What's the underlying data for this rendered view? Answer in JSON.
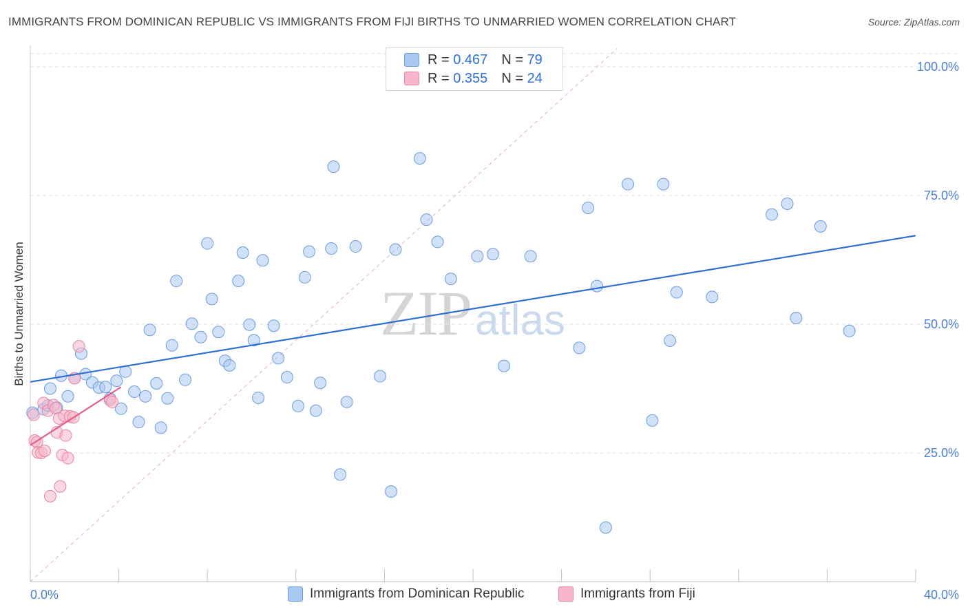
{
  "header": {
    "title": "IMMIGRANTS FROM DOMINICAN REPUBLIC VS IMMIGRANTS FROM FIJI BIRTHS TO UNMARRIED WOMEN CORRELATION CHART",
    "source": "Source: ZipAtlas.com"
  },
  "watermark": {
    "zip": "ZIP",
    "atlas": "atlas"
  },
  "legend": {
    "rows": [
      {
        "r_label": "R = ",
        "r_value": "0.467",
        "n_label": "N = ",
        "n_value": "79",
        "color": "#a9c8f2"
      },
      {
        "r_label": "R = ",
        "r_value": "0.355",
        "n_label": "N = ",
        "n_value": "24",
        "color": "#f7b6c9"
      }
    ]
  },
  "bottom_legend": [
    {
      "label": "Immigrants from Dominican Republic",
      "color": "#a9c8f2"
    },
    {
      "label": "Immigrants from Fiji",
      "color": "#f7b6c9"
    }
  ],
  "chart_data": {
    "type": "scatter",
    "title": "IMMIGRANTS FROM DOMINICAN REPUBLIC VS IMMIGRANTS FROM FIJI BIRTHS TO UNMARRIED WOMEN CORRELATION CHART",
    "ylabel": "Births to Unmarried Women",
    "xlabel": "",
    "xlim": [
      0,
      40
    ],
    "ylim": [
      0,
      100
    ],
    "x_tick_labels": [
      "0.0%",
      "40.0%"
    ],
    "y_tick_values": [
      25,
      50,
      75,
      100
    ],
    "y_tick_labels": [
      "25.0%",
      "50.0%",
      "75.0%",
      "100.0%"
    ],
    "grid": true,
    "legend_position": "top-center",
    "series": [
      {
        "name": "Immigrants from Dominican Republic",
        "color": "#a9c8f2",
        "stroke": "#6b9be0",
        "trend": {
          "x": [
            0,
            40
          ],
          "y": [
            38.8,
            67.2
          ],
          "color": "#2f6fd0"
        },
        "points": [
          [
            0.1,
            32.8
          ],
          [
            0.6,
            33.5
          ],
          [
            0.8,
            34.2
          ],
          [
            0.9,
            37.5
          ],
          [
            1.4,
            40.0
          ],
          [
            1.7,
            36.0
          ],
          [
            2.3,
            44.3
          ],
          [
            2.5,
            40.3
          ],
          [
            2.8,
            38.7
          ],
          [
            3.1,
            37.7
          ],
          [
            3.4,
            37.8
          ],
          [
            3.6,
            35.6
          ],
          [
            3.9,
            39.0
          ],
          [
            4.1,
            33.6
          ],
          [
            4.3,
            40.8
          ],
          [
            4.7,
            36.9
          ],
          [
            4.9,
            31.0
          ],
          [
            5.2,
            36.0
          ],
          [
            5.4,
            48.9
          ],
          [
            5.7,
            38.5
          ],
          [
            5.9,
            29.9
          ],
          [
            6.2,
            35.6
          ],
          [
            6.4,
            45.9
          ],
          [
            6.6,
            58.4
          ],
          [
            7.0,
            39.2
          ],
          [
            7.3,
            50.1
          ],
          [
            7.7,
            47.5
          ],
          [
            8.0,
            65.7
          ],
          [
            8.2,
            54.9
          ],
          [
            8.5,
            48.5
          ],
          [
            8.8,
            42.9
          ],
          [
            9.0,
            42.0
          ],
          [
            9.4,
            58.4
          ],
          [
            9.6,
            63.9
          ],
          [
            9.9,
            49.9
          ],
          [
            10.1,
            46.9
          ],
          [
            10.3,
            35.7
          ],
          [
            10.5,
            62.4
          ],
          [
            11.0,
            49.7
          ],
          [
            11.2,
            43.4
          ],
          [
            11.6,
            39.7
          ],
          [
            12.1,
            34.1
          ],
          [
            12.4,
            59.1
          ],
          [
            12.6,
            64.1
          ],
          [
            12.9,
            33.2
          ],
          [
            13.1,
            38.6
          ],
          [
            13.7,
            80.6
          ],
          [
            13.6,
            64.7
          ],
          [
            14.0,
            20.8
          ],
          [
            14.3,
            34.9
          ],
          [
            14.7,
            65.1
          ],
          [
            15.8,
            39.9
          ],
          [
            16.3,
            17.5
          ],
          [
            16.5,
            64.5
          ],
          [
            17.6,
            82.2
          ],
          [
            17.9,
            70.3
          ],
          [
            18.4,
            66.0
          ],
          [
            19.0,
            58.8
          ],
          [
            20.2,
            63.2
          ],
          [
            20.9,
            63.6
          ],
          [
            21.4,
            41.9
          ],
          [
            22.6,
            63.2
          ],
          [
            24.8,
            45.4
          ],
          [
            25.2,
            72.6
          ],
          [
            25.6,
            57.4
          ],
          [
            26.0,
            10.5
          ],
          [
            27.0,
            77.2
          ],
          [
            28.1,
            31.3
          ],
          [
            28.6,
            77.2
          ],
          [
            28.9,
            46.8
          ],
          [
            29.2,
            56.2
          ],
          [
            30.8,
            55.3
          ],
          [
            33.5,
            71.3
          ],
          [
            34.2,
            73.4
          ],
          [
            34.6,
            51.2
          ],
          [
            35.7,
            69.0
          ],
          [
            37.0,
            48.7
          ],
          [
            1.2,
            33.8
          ],
          [
            2.0,
            39.5
          ]
        ]
      },
      {
        "name": "Immigrants from Fiji",
        "color": "#f7b6c9",
        "stroke": "#e883a3",
        "trend": {
          "x": [
            0,
            4.1
          ],
          "y": [
            26.5,
            37.8
          ],
          "color": "#e35d8a"
        },
        "points": [
          [
            0.15,
            32.4
          ],
          [
            0.2,
            27.4
          ],
          [
            0.3,
            27.1
          ],
          [
            0.35,
            25.1
          ],
          [
            0.5,
            25.0
          ],
          [
            0.6,
            34.7
          ],
          [
            0.65,
            25.4
          ],
          [
            0.8,
            33.2
          ],
          [
            0.9,
            16.6
          ],
          [
            1.05,
            34.3
          ],
          [
            1.15,
            33.7
          ],
          [
            1.2,
            29.0
          ],
          [
            1.3,
            31.7
          ],
          [
            1.35,
            18.5
          ],
          [
            1.45,
            24.6
          ],
          [
            1.55,
            32.2
          ],
          [
            1.6,
            28.4
          ],
          [
            1.7,
            24.0
          ],
          [
            1.8,
            32.1
          ],
          [
            1.95,
            31.9
          ],
          [
            2.0,
            39.5
          ],
          [
            2.2,
            45.7
          ],
          [
            3.6,
            35.3
          ],
          [
            3.7,
            34.9
          ]
        ]
      }
    ]
  }
}
